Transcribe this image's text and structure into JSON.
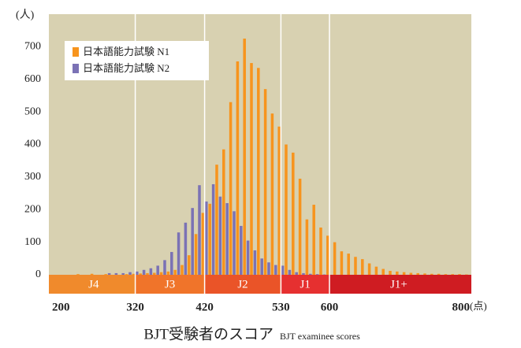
{
  "chart_data": {
    "type": "bar",
    "title": "BJT受験者のスコア",
    "subtitle": "BJT examinee scores",
    "y_unit": "(人)",
    "x_unit": "(点)",
    "x": [
      200,
      210,
      220,
      230,
      240,
      250,
      260,
      270,
      280,
      290,
      300,
      310,
      320,
      330,
      340,
      350,
      360,
      370,
      380,
      390,
      400,
      410,
      420,
      430,
      440,
      450,
      460,
      470,
      480,
      490,
      500,
      510,
      520,
      530,
      540,
      550,
      560,
      570,
      580,
      590,
      600,
      610,
      620,
      630,
      640,
      650,
      660,
      670,
      680,
      690,
      700,
      710,
      720,
      730,
      740,
      750,
      760,
      770,
      780,
      790
    ],
    "bin_width": 10,
    "series": [
      {
        "name": "日本語能力試験 N1",
        "color": "#f7941d",
        "values": [
          0,
          0,
          0,
          2,
          0,
          3,
          0,
          2,
          0,
          0,
          2,
          3,
          4,
          5,
          6,
          8,
          10,
          15,
          30,
          60,
          125,
          190,
          218,
          338,
          385,
          530,
          655,
          725,
          650,
          635,
          570,
          495,
          455,
          400,
          375,
          295,
          170,
          215,
          145,
          120,
          100,
          72,
          65,
          55,
          48,
          35,
          25,
          18,
          12,
          10,
          8,
          6,
          5,
          4,
          3,
          3,
          2,
          2,
          2,
          1
        ]
      },
      {
        "name": "日本語能力試験 N2",
        "color": "#7b72b5",
        "values": [
          0,
          0,
          0,
          0,
          0,
          0,
          0,
          0,
          5,
          5,
          5,
          8,
          10,
          15,
          20,
          28,
          45,
          70,
          130,
          160,
          205,
          275,
          225,
          278,
          240,
          220,
          195,
          150,
          105,
          75,
          50,
          38,
          30,
          28,
          15,
          8,
          5,
          3,
          2,
          1,
          0,
          0,
          0,
          0,
          0,
          0,
          0,
          0,
          0,
          0,
          0,
          0,
          0,
          0,
          0,
          0,
          0,
          0,
          0,
          0
        ]
      }
    ],
    "xlim": [
      200,
      800
    ],
    "xticks": [
      200,
      320,
      420,
      530,
      600,
      800
    ],
    "ylim": [
      0,
      800
    ],
    "yticks": [
      0,
      100,
      200,
      300,
      400,
      500,
      600,
      700
    ],
    "background": "#d8d1b1",
    "legend": "top-left",
    "bands": [
      {
        "label": "J4",
        "from": 200,
        "to": 320,
        "color": "#f08a2c"
      },
      {
        "label": "J3",
        "from": 320,
        "to": 420,
        "color": "#f0742a"
      },
      {
        "label": "J2",
        "from": 420,
        "to": 530,
        "color": "#ea5428"
      },
      {
        "label": "J1",
        "from": 530,
        "to": 600,
        "color": "#e63030"
      },
      {
        "label": "J1+",
        "from": 600,
        "to": 800,
        "color": "#cf1c22"
      }
    ]
  }
}
